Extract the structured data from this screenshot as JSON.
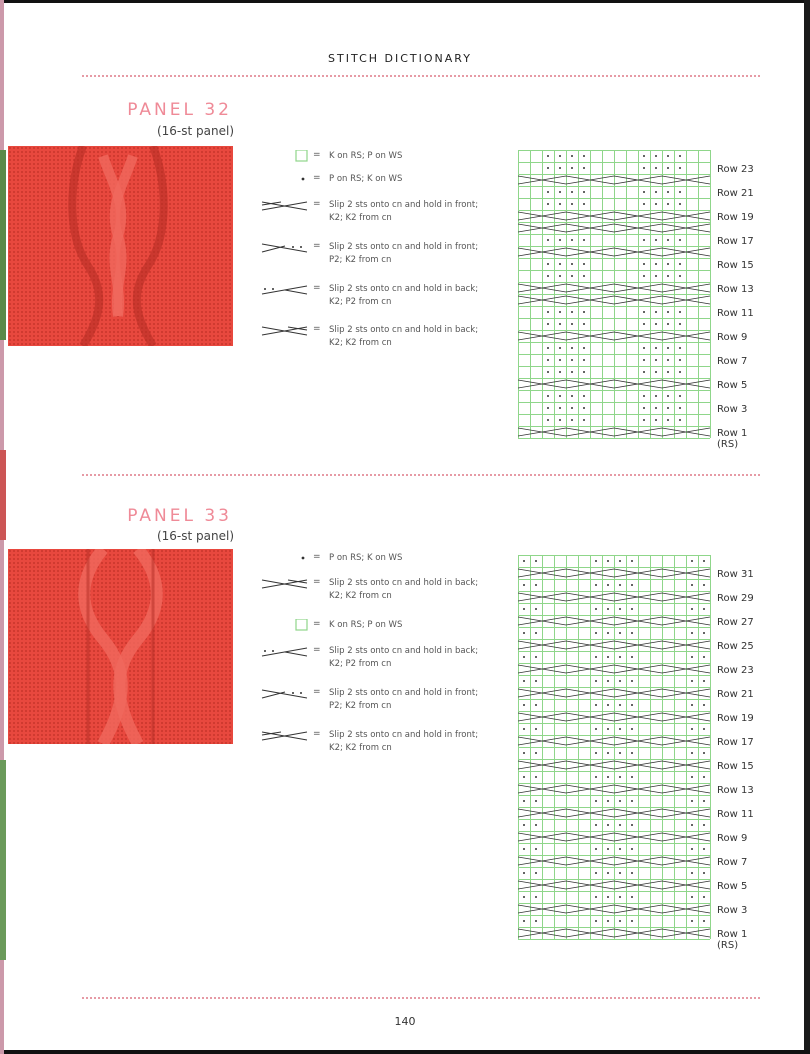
{
  "running_head": "STITCH DICTIONARY",
  "page_number": "140",
  "panels": [
    {
      "title": "PANEL 32",
      "subtitle": "(16-st panel)",
      "legend": [
        {
          "icon": "knit-square-icon",
          "text": "K on RS; P on WS"
        },
        {
          "icon": "purl-dot-icon",
          "text": "P on RS; K on WS"
        },
        {
          "icon": "cable-2-2-front-icon",
          "text": "Slip 2 sts onto cn and hold in front; K2; K2 from cn"
        },
        {
          "icon": "cable-2-2-front-purl-icon",
          "text": "Slip 2 sts onto cn and hold in front; P2; K2 from cn"
        },
        {
          "icon": "cable-2-2-back-purl-icon",
          "text": "Slip 2 sts onto cn and hold in back; K2; P2 from cn"
        },
        {
          "icon": "cable-2-2-back-icon",
          "text": "Slip 2 sts onto cn and hold in back; K2; K2 from cn"
        }
      ],
      "row_labels": [
        "Row 23",
        "Row 21",
        "Row 19",
        "Row 17",
        "Row 15",
        "Row 13",
        "Row 11",
        "Row 9",
        "Row 7",
        "Row 5",
        "Row 3",
        "Row 1",
        "(RS)"
      ]
    },
    {
      "title": "PANEL 33",
      "subtitle": "(16-st panel)",
      "legend": [
        {
          "icon": "purl-dot-icon",
          "text": "P on RS; K on WS"
        },
        {
          "icon": "cable-2-2-back-icon",
          "text": "Slip 2 sts onto cn and hold in back; K2; K2 from cn"
        },
        {
          "icon": "knit-square-icon",
          "text": "K on RS; P on WS"
        },
        {
          "icon": "cable-2-2-back-purl-icon",
          "text": "Slip 2 sts onto cn and hold in back; K2; P2 from cn"
        },
        {
          "icon": "cable-2-2-front-purl-icon",
          "text": "Slip 2 sts onto cn and hold in front; P2; K2 from cn"
        },
        {
          "icon": "cable-2-2-front-icon",
          "text": "Slip 2 sts onto cn and hold in front; K2; K2 from cn"
        }
      ],
      "row_labels": [
        "Row 31",
        "Row 29",
        "Row 27",
        "Row 25",
        "Row 23",
        "Row 21",
        "Row 19",
        "Row 17",
        "Row 15",
        "Row 13",
        "Row 11",
        "Row 9",
        "Row 7",
        "Row 5",
        "Row 3",
        "Row 1",
        "(RS)"
      ]
    }
  ],
  "colors": {
    "accent_pink": "#ef8a97",
    "grid_green": "#8fd68a",
    "swatch_red": "#e8483e"
  }
}
